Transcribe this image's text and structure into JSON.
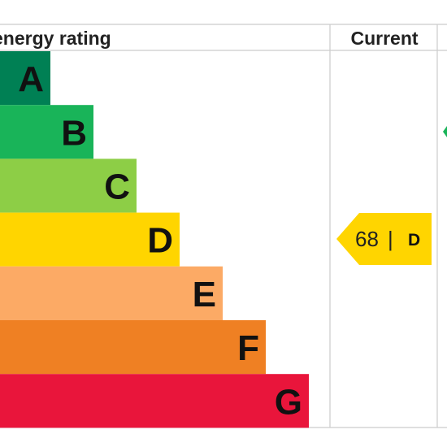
{
  "chart_data": {
    "type": "bar",
    "header": {
      "rating_label": "energy rating",
      "current_label": "Current"
    },
    "bands": [
      {
        "letter": "A",
        "color": "#008054"
      },
      {
        "letter": "B",
        "color": "#19b459"
      },
      {
        "letter": "C",
        "color": "#8dce46"
      },
      {
        "letter": "D",
        "color": "#ffd500"
      },
      {
        "letter": "E",
        "color": "#fcaa65"
      },
      {
        "letter": "F",
        "color": "#ef8023"
      },
      {
        "letter": "G",
        "color": "#e9153b"
      }
    ],
    "current": {
      "score": "68",
      "separator": "|",
      "letter": "D",
      "color": "#ffd500"
    },
    "potential_arrow_color": "#19b459",
    "grid_color": "#cccccc"
  }
}
